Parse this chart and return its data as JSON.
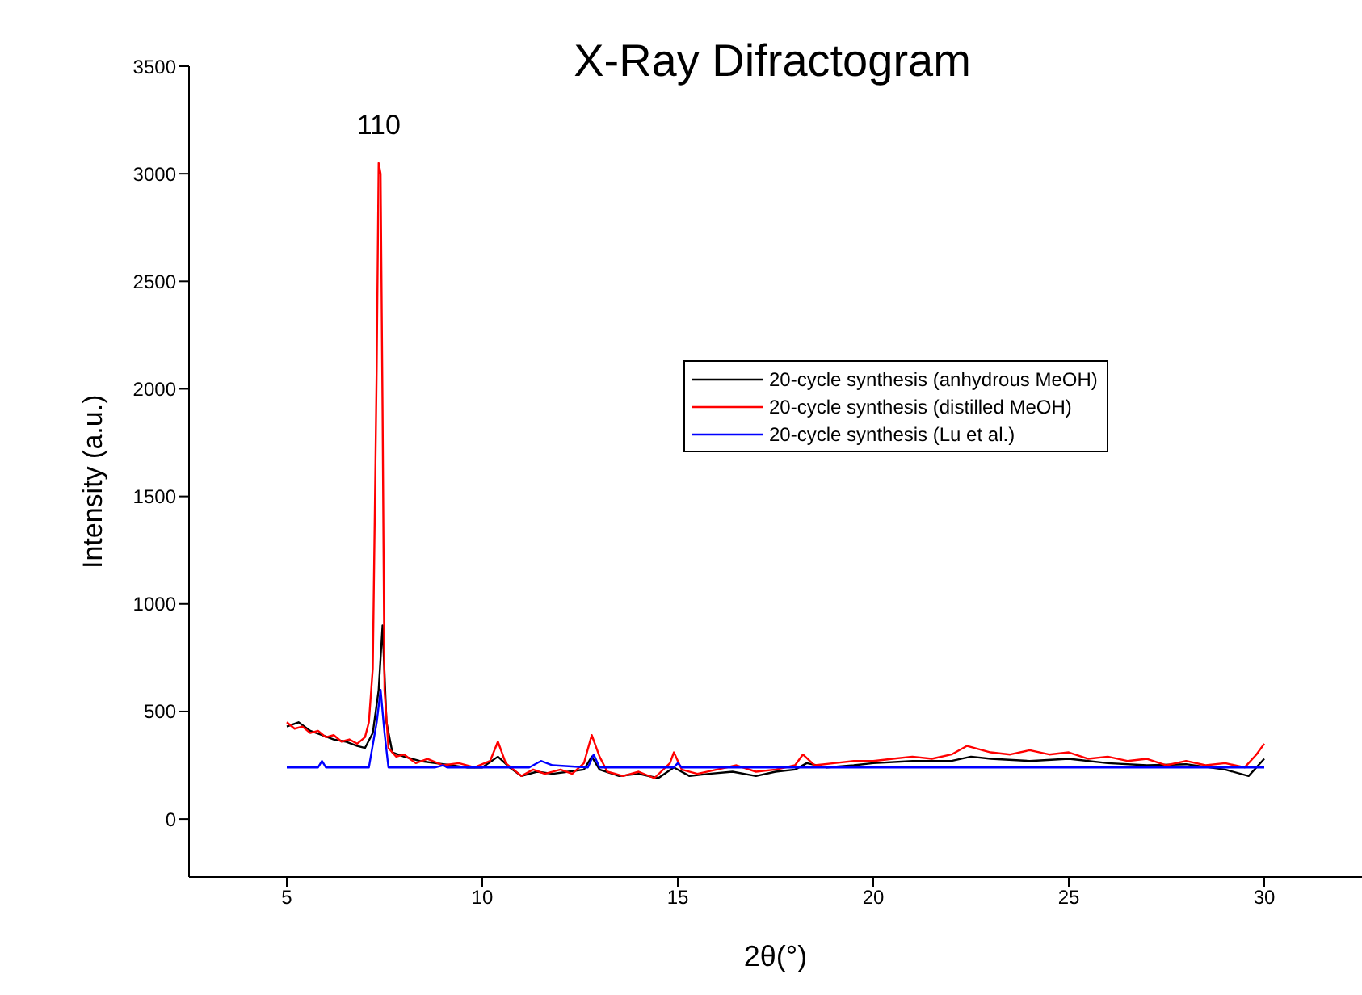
{
  "chart_data": {
    "type": "line",
    "title": "X-Ray Difractogram",
    "xlabel": "2θ(°)",
    "ylabel": "Intensity (a.u.)",
    "xlim": [
      2.5,
      32.5
    ],
    "xticks": [
      5,
      10,
      15,
      20,
      25,
      30
    ],
    "ylim": [
      -270,
      3500
    ],
    "yticks": [
      0,
      500,
      1000,
      1500,
      2000,
      2500,
      3000,
      3500
    ],
    "grid": false,
    "legend": "right",
    "marker": "none",
    "line_style": "solid",
    "annotations": [
      {
        "text": "110",
        "x": 7.35,
        "y": 3050
      }
    ],
    "series": [
      {
        "name": "20-cycle synthesis (anhydrous MeOH)",
        "color": "#000000",
        "x": [
          5,
          5.3,
          5.6,
          5.9,
          6.2,
          6.5,
          6.8,
          7.0,
          7.2,
          7.35,
          7.45,
          7.55,
          7.7,
          8.0,
          8.4,
          8.8,
          9.2,
          9.6,
          10.0,
          10.4,
          10.7,
          11.0,
          11.4,
          11.8,
          12.2,
          12.6,
          12.8,
          13.0,
          13.5,
          14.0,
          14.5,
          14.9,
          15.3,
          15.8,
          16.4,
          17.0,
          17.5,
          18.0,
          18.3,
          18.8,
          19.5,
          20,
          21,
          22,
          22.5,
          23,
          24,
          25,
          26,
          27,
          28,
          29,
          29.6,
          30
        ],
        "values": [
          430,
          450,
          410,
          390,
          370,
          360,
          340,
          330,
          400,
          600,
          900,
          450,
          310,
          290,
          270,
          260,
          250,
          240,
          240,
          290,
          240,
          200,
          220,
          210,
          220,
          230,
          290,
          230,
          200,
          210,
          190,
          240,
          200,
          210,
          220,
          200,
          220,
          230,
          260,
          240,
          250,
          260,
          270,
          270,
          290,
          280,
          270,
          280,
          260,
          250,
          255,
          230,
          200,
          280
        ]
      },
      {
        "name": "20-cycle synthesis (distilled MeOH)",
        "color": "#ff0000",
        "x": [
          5,
          5.2,
          5.4,
          5.6,
          5.8,
          6.0,
          6.2,
          6.4,
          6.6,
          6.8,
          7.0,
          7.1,
          7.2,
          7.3,
          7.35,
          7.4,
          7.45,
          7.5,
          7.6,
          7.8,
          8.0,
          8.3,
          8.6,
          9.0,
          9.4,
          9.8,
          10.2,
          10.4,
          10.6,
          10.8,
          11.0,
          11.3,
          11.6,
          12.0,
          12.3,
          12.6,
          12.8,
          13.0,
          13.2,
          13.6,
          14.0,
          14.4,
          14.8,
          14.9,
          15.1,
          15.5,
          16.0,
          16.5,
          17.0,
          17.5,
          18.0,
          18.2,
          18.5,
          19.0,
          19.5,
          20.0,
          20.5,
          21.0,
          21.5,
          22.0,
          22.4,
          23.0,
          23.5,
          24.0,
          24.5,
          25.0,
          25.5,
          26.0,
          26.5,
          27.0,
          27.5,
          28.0,
          28.5,
          29.0,
          29.5,
          29.8,
          30.0
        ],
        "values": [
          450,
          420,
          430,
          400,
          410,
          380,
          390,
          360,
          370,
          350,
          380,
          450,
          700,
          2100,
          3050,
          3000,
          1900,
          600,
          330,
          290,
          300,
          260,
          280,
          250,
          260,
          240,
          270,
          360,
          260,
          230,
          200,
          230,
          210,
          230,
          210,
          260,
          390,
          290,
          220,
          200,
          220,
          190,
          260,
          310,
          230,
          210,
          230,
          250,
          220,
          230,
          250,
          300,
          250,
          260,
          270,
          270,
          280,
          290,
          280,
          300,
          340,
          310,
          300,
          320,
          300,
          310,
          280,
          290,
          270,
          280,
          250,
          270,
          250,
          260,
          240,
          300,
          350
        ]
      },
      {
        "name": "20-cycle synthesis (Lu et al.)",
        "color": "#0000ff",
        "x": [
          5,
          5.8,
          5.9,
          6.0,
          7.1,
          7.3,
          7.4,
          7.5,
          7.6,
          8.8,
          9.0,
          9.1,
          11.2,
          11.5,
          11.8,
          12.7,
          12.85,
          13.0,
          14.9,
          15.0,
          15.1,
          30
        ],
        "values": [
          240,
          240,
          270,
          240,
          240,
          450,
          600,
          400,
          240,
          240,
          250,
          240,
          240,
          270,
          250,
          240,
          300,
          240,
          240,
          260,
          240,
          240
        ]
      }
    ]
  }
}
